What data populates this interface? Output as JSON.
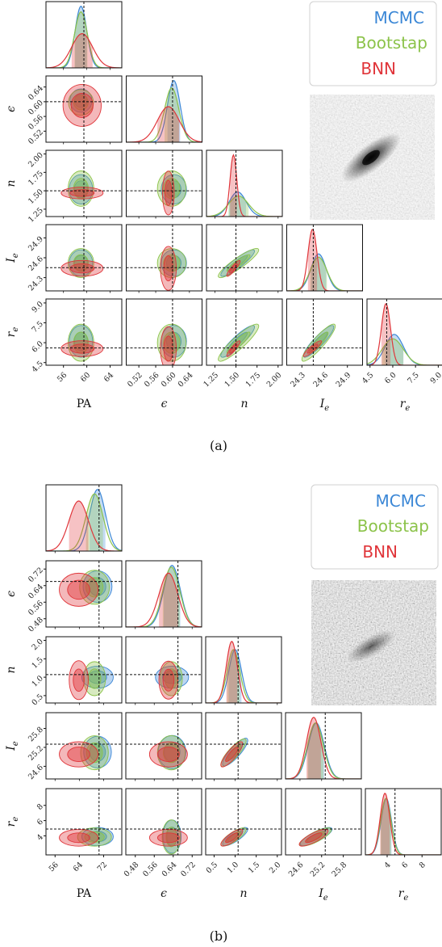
{
  "figure": {
    "captions": [
      "(a)",
      "(b)"
    ]
  },
  "legend": {
    "entries": [
      {
        "label": "MCMC",
        "color": "#3b87d6"
      },
      {
        "label": "Bootstap",
        "color": "#8cc34a"
      },
      {
        "label": "BNN",
        "color": "#e0353a"
      }
    ]
  },
  "chart_data": [
    {
      "type": "corner",
      "caption": "(a)",
      "variables": [
        {
          "label": "PA",
          "italic": false,
          "range": [
            53,
            66
          ],
          "ticks": [
            56,
            60,
            64
          ],
          "tick_labels": [
            "56",
            "60",
            "64"
          ],
          "truth": 59.5
        },
        {
          "label": "ϵ",
          "italic": true,
          "range": [
            0.49,
            0.67
          ],
          "ticks": [
            0.52,
            0.56,
            0.6,
            0.64
          ],
          "tick_labels": [
            "0.52",
            "0.56",
            "0.60",
            "0.64"
          ],
          "truth": 0.6
        },
        {
          "label": "n",
          "italic": true,
          "range": [
            1.15,
            2.05
          ],
          "ticks": [
            1.25,
            1.5,
            1.75,
            2.0
          ],
          "tick_labels": [
            "1.25",
            "1.50",
            "1.75",
            "2.00"
          ],
          "truth": 1.5
        },
        {
          "label": "I",
          "sub": "e",
          "italic": true,
          "range": [
            24.1,
            25.1
          ],
          "ticks": [
            24.3,
            24.6,
            24.9
          ],
          "tick_labels": [
            "24.3",
            "24.6",
            "24.9"
          ],
          "truth": 24.45
        },
        {
          "label": "r",
          "sub": "e",
          "italic": true,
          "range": [
            4.3,
            9.3
          ],
          "ticks": [
            4.5,
            6.0,
            7.5,
            9.0
          ],
          "tick_labels": [
            "4.5",
            "6.0",
            "7.5",
            "9.0"
          ],
          "truth": 5.6
        }
      ],
      "series": [
        {
          "name": "MCMC",
          "color": "#3b87d6",
          "means": [
            59,
            0.603,
            1.52,
            24.52,
            6.1
          ],
          "sds": [
            1.0,
            0.015,
            0.1,
            0.1,
            0.6
          ],
          "corr": [
            [
              1,
              0,
              0,
              0,
              0
            ],
            [
              0,
              1,
              0,
              0,
              0
            ],
            [
              0,
              0,
              1,
              0.9,
              0.9
            ],
            [
              0,
              0,
              0.9,
              1,
              0.9
            ],
            [
              0,
              0,
              0.9,
              0.9,
              1
            ]
          ]
        },
        {
          "name": "Bootstap",
          "color": "#8cc34a",
          "means": [
            59,
            0.598,
            1.53,
            24.52,
            6.0
          ],
          "sds": [
            1.1,
            0.017,
            0.12,
            0.11,
            0.7
          ],
          "corr": [
            [
              1,
              0,
              0,
              0,
              0
            ],
            [
              0,
              1,
              0,
              0,
              0
            ],
            [
              0,
              0,
              1,
              0.9,
              0.9
            ],
            [
              0,
              0,
              0.9,
              1,
              0.9
            ],
            [
              0,
              0,
              0.9,
              0.9,
              1
            ]
          ]
        },
        {
          "name": "BNN",
          "color": "#e0353a",
          "means": [
            59.2,
            0.59,
            1.47,
            24.44,
            5.55
          ],
          "sds": [
            1.8,
            0.026,
            0.04,
            0.06,
            0.3
          ],
          "corr": [
            [
              1,
              0,
              0,
              0,
              0
            ],
            [
              0,
              1,
              0,
              0,
              0
            ],
            [
              0,
              0,
              1,
              0.9,
              0.9
            ],
            [
              0,
              0,
              0.9,
              1,
              0.9
            ],
            [
              0,
              0,
              0.9,
              0.9,
              1
            ]
          ]
        }
      ]
    },
    {
      "type": "corner",
      "caption": "(b)",
      "variables": [
        {
          "label": "PA",
          "italic": false,
          "range": [
            53,
            78
          ],
          "ticks": [
            56,
            64,
            72
          ],
          "tick_labels": [
            "56",
            "64",
            "72"
          ],
          "truth": 70.5
        },
        {
          "label": "ϵ",
          "italic": true,
          "range": [
            0.44,
            0.76
          ],
          "ticks": [
            0.48,
            0.56,
            0.64,
            0.72
          ],
          "tick_labels": [
            "0.48",
            "0.56",
            "0.64",
            "0.72"
          ],
          "truth": 0.66
        },
        {
          "label": "n",
          "italic": true,
          "range": [
            0.3,
            2.1
          ],
          "ticks": [
            0.5,
            1.0,
            1.5,
            2.0
          ],
          "tick_labels": [
            "0.5",
            "1.0",
            "1.5",
            "2.0"
          ],
          "truth": 1.07
        },
        {
          "label": "I",
          "sub": "e",
          "italic": true,
          "range": [
            24.2,
            26.3
          ],
          "ticks": [
            24.6,
            25.2,
            25.8
          ],
          "tick_labels": [
            "24.6",
            "25.2",
            "25.8"
          ],
          "truth": 25.3
        },
        {
          "label": "r",
          "sub": "e",
          "italic": true,
          "range": [
            1.5,
            10.2
          ],
          "ticks": [
            4,
            6,
            8
          ],
          "tick_labels": [
            "4",
            "6",
            "8"
          ],
          "truth": 4.9
        }
      ],
      "series": [
        {
          "name": "MCMC",
          "color": "#3b87d6",
          "means": [
            70,
            0.635,
            1.0,
            25.05,
            3.9
          ],
          "sds": [
            2.6,
            0.035,
            0.15,
            0.22,
            0.6
          ],
          "corr": [
            [
              1,
              0,
              0,
              0,
              0
            ],
            [
              0,
              1,
              0,
              0,
              0
            ],
            [
              0,
              0,
              1,
              0.85,
              0.8
            ],
            [
              0,
              0,
              0.85,
              1,
              0.8
            ],
            [
              0,
              0,
              0.8,
              0.8,
              1
            ]
          ]
        },
        {
          "name": "Bootstap",
          "color": "#8cc34a",
          "means": [
            69,
            0.632,
            0.96,
            25.03,
            3.85
          ],
          "sds": [
            2.8,
            0.036,
            0.15,
            0.22,
            0.6
          ],
          "corr": [
            [
              1,
              0,
              0,
              0,
              0
            ],
            [
              0,
              1,
              0,
              0,
              0
            ],
            [
              0,
              0,
              1,
              0.85,
              0.8
            ],
            [
              0,
              0,
              0.85,
              1,
              0.8
            ],
            [
              0,
              0,
              0.8,
              0.8,
              1
            ]
          ]
        },
        {
          "name": "BNN",
          "color": "#e0353a",
          "means": [
            63.8,
            0.62,
            0.92,
            24.98,
            3.75
          ],
          "sds": [
            3.2,
            0.04,
            0.13,
            0.2,
            0.55
          ],
          "corr": [
            [
              1,
              0,
              0,
              0,
              0
            ],
            [
              0,
              1,
              0,
              0,
              0
            ],
            [
              0,
              0,
              1,
              0.85,
              0.8
            ],
            [
              0,
              0,
              0.85,
              1,
              0.8
            ],
            [
              0,
              0,
              0.8,
              0.8,
              1
            ]
          ]
        }
      ]
    }
  ]
}
